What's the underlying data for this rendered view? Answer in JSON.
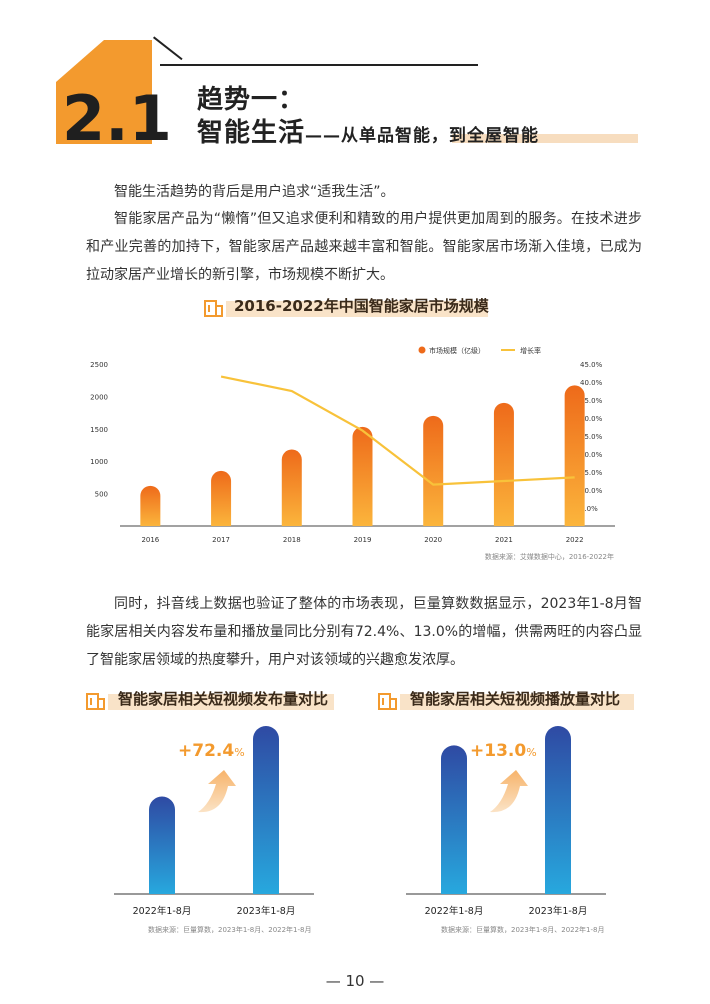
{
  "header": {
    "number": "2.1",
    "title1": "趋势一：",
    "title2_main": "智能生活",
    "title2_sub": "——从单品智能，到全屋智能"
  },
  "paragraphs": {
    "p1": "智能生活趋势的背后是用户追求“适我生活”。",
    "p2": "智能家居产品为“懒惰”但又追求便利和精致的用户提供更加周到的服务。在技术进步和产业完善的加持下，智能家居产品越来越丰富和智能。智能家居市场渐入佳境，已成为拉动家居产业增长的新引擎，市场规模不断扩大。",
    "p3": "同时，抖音线上数据也验证了整体的市场表现，巨量算数数据显示，2023年1-8月智能家居相关内容发布量和播放量同比分别有72.4%、13.0%的增幅，供需两旺的内容凸显了智能家居领域的热度攀升，用户对该领域的兴趣愈发浓厚。"
  },
  "colors": {
    "accent": "#f39a2e",
    "bar_top": "#ee6a1a",
    "bar_bottom": "#fbb53c",
    "line": "#f8c23a",
    "blue_top": "#2f4aa3",
    "blue_bottom": "#27a8de"
  },
  "chart_data": [
    {
      "type": "bar",
      "title": "2016-2022年中国智能家居市场规模",
      "categories": [
        "2016",
        "2017",
        "2018",
        "2019",
        "2020",
        "2021",
        "2022"
      ],
      "series": [
        {
          "name": "市场规模（亿级）",
          "type": "bar",
          "axis": "left",
          "values": [
            620,
            850,
            1180,
            1530,
            1700,
            1900,
            2170
          ]
        },
        {
          "name": "增长率",
          "type": "line",
          "axis": "right",
          "values": [
            null,
            41.5,
            37.5,
            26.5,
            11.5,
            12.5,
            13.5
          ]
        }
      ],
      "left_ticks": [
        "500",
        "1000",
        "1500",
        "2000",
        "2500"
      ],
      "right_ticks": [
        "5.0%",
        "10.0%",
        "15.0%",
        "20.0%",
        "25.0%",
        "30.0%",
        "35.0%",
        "40.0%",
        "45.0%"
      ],
      "ylim_left": [
        0,
        2500
      ],
      "ylim_right": [
        0,
        45
      ],
      "source": "数据来源：艾媒数据中心，2016-2022年"
    },
    {
      "type": "bar",
      "title": "智能家居相关短视频发布量对比",
      "categories": [
        "2022年1-8月",
        "2023年1-8月"
      ],
      "values": [
        100,
        172.4
      ],
      "growth": "+72.4",
      "growth_unit": "%",
      "source": "数据来源：巨量算数，2023年1-8月、2022年1-8月"
    },
    {
      "type": "bar",
      "title": "智能家居相关短视频播放量对比",
      "categories": [
        "2022年1-8月",
        "2023年1-8月"
      ],
      "values": [
        100,
        113.0
      ],
      "growth": "+13.0",
      "growth_unit": "%",
      "source": "数据来源：巨量算数，2023年1-8月、2022年1-8月"
    }
  ],
  "footer": {
    "page": "— 10 —"
  }
}
